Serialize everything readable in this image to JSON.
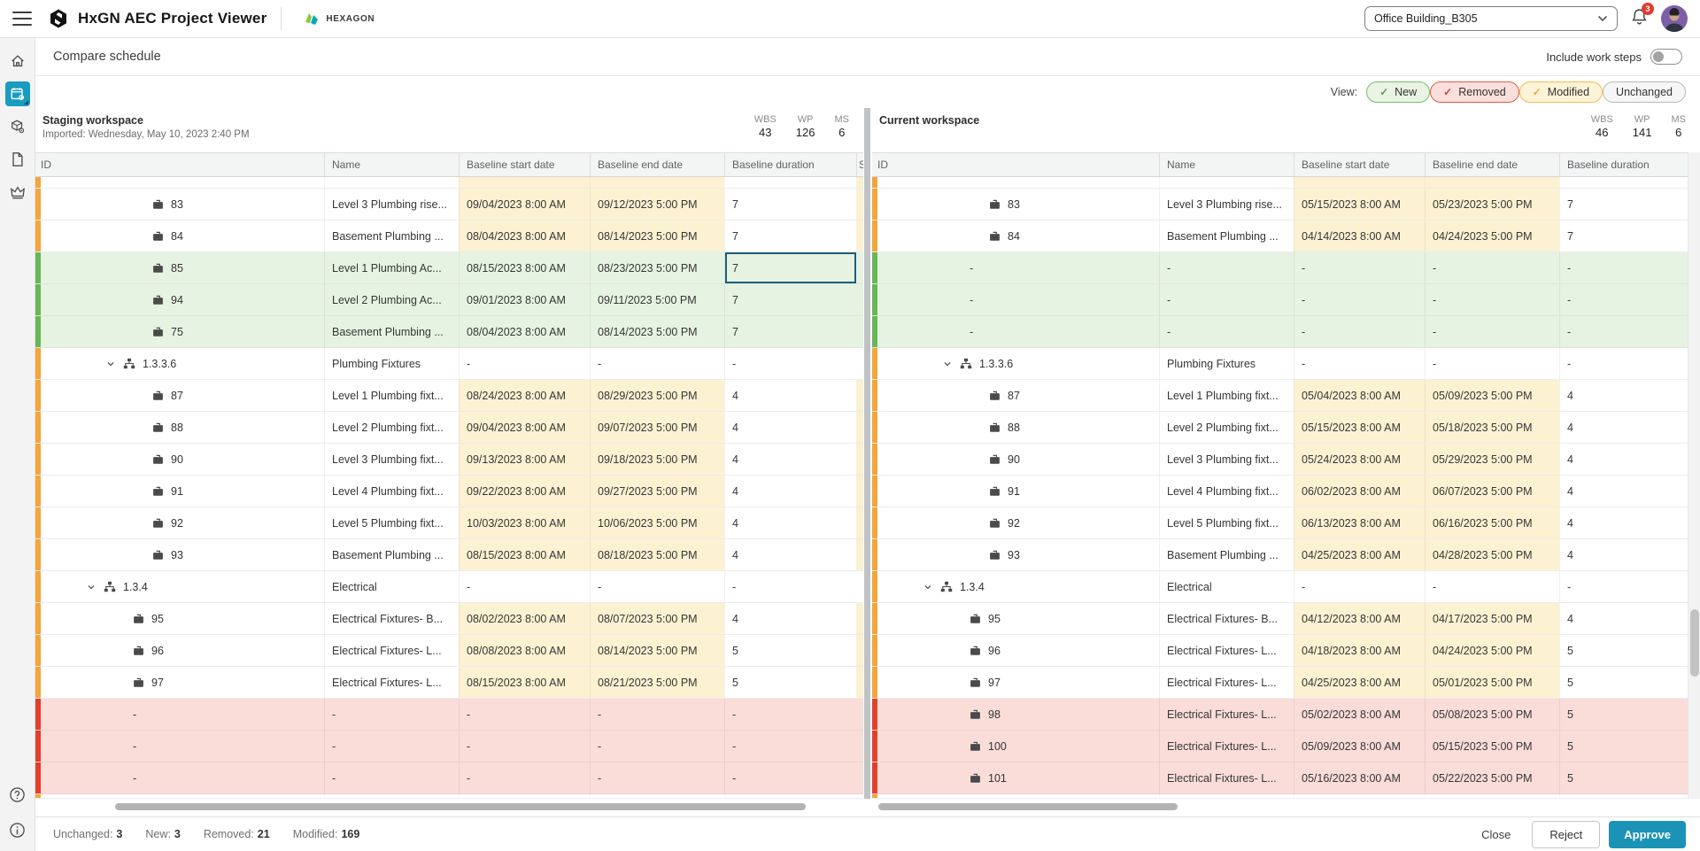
{
  "app": {
    "title": "HxGN AEC Project Viewer",
    "brand": "HEXAGON",
    "project": "Office Building_B305",
    "notifications": "3"
  },
  "page": {
    "title": "Compare schedule",
    "include_work_steps": "Include work steps",
    "view_label": "View:",
    "filters": [
      {
        "label": "New",
        "bg": "#e9f4e4",
        "border": "#79bf6a",
        "check": "#55a548"
      },
      {
        "label": "Removed",
        "bg": "#fbdfdc",
        "border": "#e25a4b",
        "check": "#d9402e"
      },
      {
        "label": "Modified",
        "bg": "#fdf3d6",
        "border": "#f2bd55",
        "check": "#eca83d"
      },
      {
        "label": "Unchanged",
        "bg": "#f6f6f6",
        "border": "#b9b9b9",
        "check": ""
      }
    ]
  },
  "staging": {
    "title": "Staging workspace",
    "subtitle": "Imported: Wednesday, May 10, 2023 2:40 PM",
    "stats": [
      {
        "label": "WBS",
        "value": "43"
      },
      {
        "label": "WP",
        "value": "126"
      },
      {
        "label": "MS",
        "value": "6"
      }
    ],
    "columns": [
      "ID",
      "Name",
      "Baseline start date",
      "Baseline end date",
      "Baseline duration",
      "S"
    ]
  },
  "current": {
    "title": "Current workspace",
    "subtitle": "",
    "stats": [
      {
        "label": "WBS",
        "value": "46"
      },
      {
        "label": "WP",
        "value": "141"
      },
      {
        "label": "MS",
        "value": "6"
      }
    ],
    "columns": [
      "ID",
      "Name",
      "Baseline start date",
      "Baseline end date",
      "Baseline duration"
    ]
  },
  "rows": [
    {
      "kind": "wp",
      "status": "modified",
      "indent": 126,
      "left": {
        "id": "83",
        "name": "Level 3 Plumbing rise...",
        "start": "09/04/2023 8:00 AM",
        "end": "09/12/2023 5:00 PM",
        "dur": "7"
      },
      "right": {
        "id": "83",
        "name": "Level 3 Plumbing rise...",
        "start": "05/15/2023 8:00 AM",
        "end": "05/23/2023 5:00 PM",
        "dur": "7"
      }
    },
    {
      "kind": "wp",
      "status": "modified",
      "indent": 126,
      "left": {
        "id": "84",
        "name": "Basement Plumbing ...",
        "start": "08/04/2023 8:00 AM",
        "end": "08/14/2023 5:00 PM",
        "dur": "7"
      },
      "right": {
        "id": "84",
        "name": "Basement Plumbing ...",
        "start": "04/14/2023 8:00 AM",
        "end": "04/24/2023 5:00 PM",
        "dur": "7"
      }
    },
    {
      "kind": "wp",
      "status": "new",
      "indent": 126,
      "selected": "dur",
      "left": {
        "id": "85",
        "name": "Level 1 Plumbing Ac...",
        "start": "08/15/2023 8:00 AM",
        "end": "08/23/2023 5:00 PM",
        "dur": "7"
      },
      "right": {
        "id": "-",
        "name": "-",
        "start": "-",
        "end": "-",
        "dur": "-"
      }
    },
    {
      "kind": "wp",
      "status": "new",
      "indent": 126,
      "left": {
        "id": "94",
        "name": "Level 2 Plumbing Ac...",
        "start": "09/01/2023 8:00 AM",
        "end": "09/11/2023 5:00 PM",
        "dur": "7"
      },
      "right": {
        "id": "-",
        "name": "-",
        "start": "-",
        "end": "-",
        "dur": "-"
      }
    },
    {
      "kind": "wp",
      "status": "new",
      "indent": 126,
      "left": {
        "id": "75",
        "name": "Basement Plumbing ...",
        "start": "08/04/2023 8:00 AM",
        "end": "08/14/2023 5:00 PM",
        "dur": "7"
      },
      "right": {
        "id": "-",
        "name": "-",
        "start": "-",
        "end": "-",
        "dur": "-"
      }
    },
    {
      "kind": "wbs",
      "status": "wbs",
      "indent": 74,
      "left": {
        "id": "1.3.3.6",
        "name": "Plumbing Fixtures",
        "start": "-",
        "end": "-",
        "dur": "-"
      },
      "right": {
        "id": "1.3.3.6",
        "name": "Plumbing Fixtures",
        "start": "-",
        "end": "-",
        "dur": "-"
      }
    },
    {
      "kind": "wp",
      "status": "modified",
      "indent": 126,
      "left": {
        "id": "87",
        "name": "Level 1 Plumbing fixt...",
        "start": "08/24/2023 8:00 AM",
        "end": "08/29/2023 5:00 PM",
        "dur": "4"
      },
      "right": {
        "id": "87",
        "name": "Level 1 Plumbing fixt...",
        "start": "05/04/2023 8:00 AM",
        "end": "05/09/2023 5:00 PM",
        "dur": "4"
      }
    },
    {
      "kind": "wp",
      "status": "modified",
      "indent": 126,
      "left": {
        "id": "88",
        "name": "Level 2 Plumbing fixt...",
        "start": "09/04/2023 8:00 AM",
        "end": "09/07/2023 5:00 PM",
        "dur": "4"
      },
      "right": {
        "id": "88",
        "name": "Level 2 Plumbing fixt...",
        "start": "05/15/2023 8:00 AM",
        "end": "05/18/2023 5:00 PM",
        "dur": "4"
      }
    },
    {
      "kind": "wp",
      "status": "modified",
      "indent": 126,
      "left": {
        "id": "90",
        "name": "Level 3 Plumbing fixt...",
        "start": "09/13/2023 8:00 AM",
        "end": "09/18/2023 5:00 PM",
        "dur": "4"
      },
      "right": {
        "id": "90",
        "name": "Level 3 Plumbing fixt...",
        "start": "05/24/2023 8:00 AM",
        "end": "05/29/2023 5:00 PM",
        "dur": "4"
      }
    },
    {
      "kind": "wp",
      "status": "modified",
      "indent": 126,
      "left": {
        "id": "91",
        "name": "Level 4 Plumbing fixt...",
        "start": "09/22/2023 8:00 AM",
        "end": "09/27/2023 5:00 PM",
        "dur": "4"
      },
      "right": {
        "id": "91",
        "name": "Level 4 Plumbing fixt...",
        "start": "06/02/2023 8:00 AM",
        "end": "06/07/2023 5:00 PM",
        "dur": "4"
      }
    },
    {
      "kind": "wp",
      "status": "modified",
      "indent": 126,
      "left": {
        "id": "92",
        "name": "Level 5 Plumbing fixt...",
        "start": "10/03/2023 8:00 AM",
        "end": "10/06/2023 5:00 PM",
        "dur": "4"
      },
      "right": {
        "id": "92",
        "name": "Level 5 Plumbing fixt...",
        "start": "06/13/2023 8:00 AM",
        "end": "06/16/2023 5:00 PM",
        "dur": "4"
      }
    },
    {
      "kind": "wp",
      "status": "modified",
      "indent": 126,
      "left": {
        "id": "93",
        "name": "Basement Plumbing ...",
        "start": "08/15/2023 8:00 AM",
        "end": "08/18/2023 5:00 PM",
        "dur": "4"
      },
      "right": {
        "id": "93",
        "name": "Basement Plumbing ...",
        "start": "04/25/2023 8:00 AM",
        "end": "04/28/2023 5:00 PM",
        "dur": "4"
      }
    },
    {
      "kind": "wbs",
      "status": "wbs",
      "indent": 52,
      "left": {
        "id": "1.3.4",
        "name": "Electrical",
        "start": "-",
        "end": "-",
        "dur": "-"
      },
      "right": {
        "id": "1.3.4",
        "name": "Electrical",
        "start": "-",
        "end": "-",
        "dur": "-"
      }
    },
    {
      "kind": "wp",
      "status": "modified",
      "indent": 104,
      "left": {
        "id": "95",
        "name": "Electrical Fixtures- B...",
        "start": "08/02/2023 8:00 AM",
        "end": "08/07/2023 5:00 PM",
        "dur": "4"
      },
      "right": {
        "id": "95",
        "name": "Electrical Fixtures- B...",
        "start": "04/12/2023 8:00 AM",
        "end": "04/17/2023 5:00 PM",
        "dur": "4"
      }
    },
    {
      "kind": "wp",
      "status": "modified",
      "indent": 104,
      "left": {
        "id": "96",
        "name": "Electrical Fixtures- L...",
        "start": "08/08/2023 8:00 AM",
        "end": "08/14/2023 5:00 PM",
        "dur": "5"
      },
      "right": {
        "id": "96",
        "name": "Electrical Fixtures- L...",
        "start": "04/18/2023 8:00 AM",
        "end": "04/24/2023 5:00 PM",
        "dur": "5"
      }
    },
    {
      "kind": "wp",
      "status": "modified",
      "indent": 104,
      "left": {
        "id": "97",
        "name": "Electrical Fixtures- L...",
        "start": "08/15/2023 8:00 AM",
        "end": "08/21/2023 5:00 PM",
        "dur": "5"
      },
      "right": {
        "id": "97",
        "name": "Electrical Fixtures- L...",
        "start": "04/25/2023 8:00 AM",
        "end": "05/01/2023 5:00 PM",
        "dur": "5"
      }
    },
    {
      "kind": "wp",
      "status": "removed",
      "indent": 104,
      "left": {
        "id": "-",
        "name": "-",
        "start": "-",
        "end": "-",
        "dur": "-"
      },
      "right": {
        "id": "98",
        "name": "Electrical Fixtures- L...",
        "start": "05/02/2023 8:00 AM",
        "end": "05/08/2023 5:00 PM",
        "dur": "5"
      }
    },
    {
      "kind": "wp",
      "status": "removed",
      "indent": 104,
      "left": {
        "id": "-",
        "name": "-",
        "start": "-",
        "end": "-",
        "dur": "-"
      },
      "right": {
        "id": "100",
        "name": "Electrical Fixtures- L...",
        "start": "05/09/2023 8:00 AM",
        "end": "05/15/2023 5:00 PM",
        "dur": "5"
      }
    },
    {
      "kind": "wp",
      "status": "removed",
      "indent": 104,
      "left": {
        "id": "-",
        "name": "-",
        "start": "-",
        "end": "-",
        "dur": "-"
      },
      "right": {
        "id": "101",
        "name": "Electrical Fixtures- L...",
        "start": "05/16/2023 8:00 AM",
        "end": "05/22/2023 5:00 PM",
        "dur": "5"
      }
    }
  ],
  "footer": {
    "counts": [
      {
        "label": "Unchanged:",
        "value": "3"
      },
      {
        "label": "New:",
        "value": "3"
      },
      {
        "label": "Removed:",
        "value": "21"
      },
      {
        "label": "Modified:",
        "value": "169"
      }
    ],
    "close": "Close",
    "reject": "Reject",
    "approve": "Approve"
  }
}
